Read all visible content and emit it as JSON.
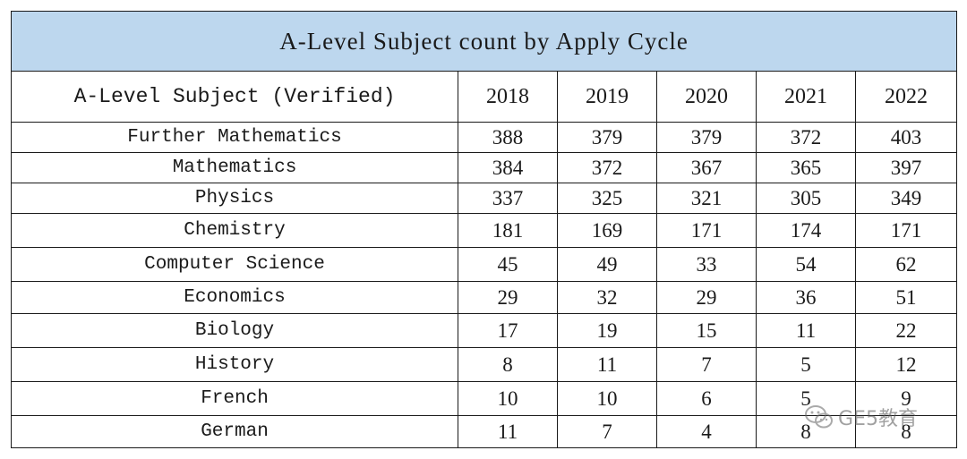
{
  "title": "A-Level Subject count by Apply Cycle",
  "header": {
    "subject_label": "A-Level Subject (Verified)",
    "years": [
      "2018",
      "2019",
      "2020",
      "2021",
      "2022"
    ]
  },
  "rows": [
    {
      "subject": "Further Mathematics",
      "values": [
        "388",
        "379",
        "379",
        "372",
        "403"
      ]
    },
    {
      "subject": "Mathematics",
      "values": [
        "384",
        "372",
        "367",
        "365",
        "397"
      ]
    },
    {
      "subject": "Physics",
      "values": [
        "337",
        "325",
        "321",
        "305",
        "349"
      ]
    },
    {
      "subject": "Chemistry",
      "values": [
        "181",
        "169",
        "171",
        "174",
        "171"
      ]
    },
    {
      "subject": "Computer Science",
      "values": [
        "45",
        "49",
        "33",
        "54",
        "62"
      ]
    },
    {
      "subject": "Economics",
      "values": [
        "29",
        "32",
        "29",
        "36",
        "51"
      ]
    },
    {
      "subject": "Biology",
      "values": [
        "17",
        "19",
        "15",
        "11",
        "22"
      ]
    },
    {
      "subject": "History",
      "values": [
        "8",
        "11",
        "7",
        "5",
        "12"
      ]
    },
    {
      "subject": "French",
      "values": [
        "10",
        "10",
        "6",
        "5",
        "9"
      ]
    },
    {
      "subject": "German",
      "values": [
        "11",
        "7",
        "4",
        "8",
        "8"
      ]
    }
  ],
  "watermark": {
    "text": "GE5教育",
    "icon": "wechat-icon"
  },
  "colors": {
    "title_background": "#bdd7ee",
    "header_text": "#2e75b6",
    "body_text": "#1a1a1a"
  }
}
